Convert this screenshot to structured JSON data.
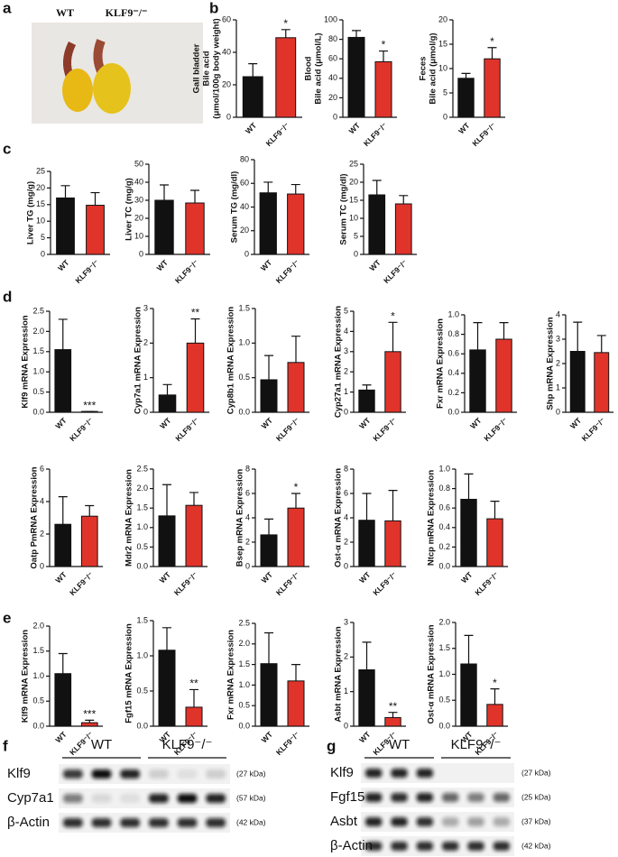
{
  "figure": {
    "panels": [
      "a",
      "b",
      "c",
      "d",
      "e",
      "f",
      "g"
    ],
    "photo": {
      "labels": [
        "WT",
        "KLF9⁻/⁻"
      ]
    },
    "blots": [
      {
        "groups": [
          "WT",
          "KLF9⁻/⁻"
        ],
        "rows": [
          {
            "label": "Klf9",
            "size": "(27 kDa)"
          },
          {
            "label": "Cyp7a1",
            "size": "(57 kDa)"
          },
          {
            "label": "β-Actin",
            "size": "(42 kDa)"
          }
        ]
      },
      {
        "groups": [
          "WT",
          "KLF9⁻/⁻"
        ],
        "rows": [
          {
            "label": "Klf9",
            "size": "(27 kDa)"
          },
          {
            "label": "Fgf15",
            "size": "(25 kDa)"
          },
          {
            "label": "Asbt",
            "size": "(37 kDa)"
          },
          {
            "label": "β-Actin",
            "size": "(42 kDa)"
          }
        ]
      }
    ]
  },
  "chart_data": [
    {
      "type": "bar",
      "ylabel": [
        "Gall bladder",
        "Bile acid",
        "(μmol/100g body weight)"
      ],
      "categories": [
        "WT",
        "KLF9⁻/⁻"
      ],
      "values": [
        25,
        49
      ],
      "errors": [
        8,
        5
      ],
      "colors": [
        "#111111",
        "#e0342b"
      ],
      "significance": [
        null,
        "*"
      ],
      "ylim": [
        0,
        60
      ],
      "yticks": [
        0,
        20,
        40,
        60
      ]
    },
    {
      "type": "bar",
      "ylabel": [
        "Blood",
        "Bile acid (μmol/L)"
      ],
      "categories": [
        "WT",
        "KLF9⁻/⁻"
      ],
      "values": [
        82,
        57
      ],
      "errors": [
        7,
        11
      ],
      "colors": [
        "#111111",
        "#e0342b"
      ],
      "significance": [
        null,
        "*"
      ],
      "ylim": [
        0,
        100
      ],
      "yticks": [
        0,
        20,
        40,
        60,
        80,
        100
      ]
    },
    {
      "type": "bar",
      "ylabel": [
        "Feces",
        "Bile acid (μmol/g)"
      ],
      "categories": [
        "WT",
        "KLF9⁻/⁻"
      ],
      "values": [
        8,
        12
      ],
      "errors": [
        1,
        2.3
      ],
      "colors": [
        "#111111",
        "#e0342b"
      ],
      "significance": [
        null,
        "*"
      ],
      "ylim": [
        0,
        20
      ],
      "yticks": [
        0,
        5,
        10,
        15,
        20
      ]
    },
    {
      "type": "bar",
      "ylabel": [
        "Liver TG (mg/g)"
      ],
      "categories": [
        "WT",
        "KLF9⁻/⁻"
      ],
      "values": [
        17,
        14.8
      ],
      "errors": [
        3.7,
        3.8
      ],
      "colors": [
        "#111111",
        "#e0342b"
      ],
      "significance": [
        null,
        null
      ],
      "ylim": [
        0,
        25
      ],
      "yticks": [
        0,
        5,
        10,
        15,
        20,
        25
      ]
    },
    {
      "type": "bar",
      "ylabel": [
        "Liver TC (mg/g)"
      ],
      "categories": [
        "WT",
        "KLF9⁻/⁻"
      ],
      "values": [
        30,
        28.5
      ],
      "errors": [
        8.5,
        7
      ],
      "colors": [
        "#111111",
        "#e0342b"
      ],
      "significance": [
        null,
        null
      ],
      "ylim": [
        0,
        50
      ],
      "yticks": [
        0,
        10,
        20,
        30,
        40,
        50
      ]
    },
    {
      "type": "bar",
      "ylabel": [
        "Serum TG (mg/dl)"
      ],
      "categories": [
        "WT",
        "KLF9⁻/⁻"
      ],
      "values": [
        52,
        51
      ],
      "errors": [
        9,
        8
      ],
      "colors": [
        "#111111",
        "#e0342b"
      ],
      "significance": [
        null,
        null
      ],
      "ylim": [
        0,
        80
      ],
      "yticks": [
        0,
        20,
        40,
        60,
        80
      ]
    },
    {
      "type": "bar",
      "ylabel": [
        "Serum TC (mg/dl)"
      ],
      "categories": [
        "WT",
        "KLF9⁻/⁻"
      ],
      "values": [
        16.5,
        14
      ],
      "errors": [
        4,
        2.3
      ],
      "colors": [
        "#111111",
        "#e0342b"
      ],
      "significance": [
        null,
        null
      ],
      "ylim": [
        0,
        25
      ],
      "yticks": [
        0,
        5,
        10,
        15,
        20,
        25
      ]
    },
    {
      "type": "bar",
      "ylabel": [
        "Klf9 mRNA Expression"
      ],
      "categories": [
        "WT",
        "KLF9⁻/⁻"
      ],
      "values": [
        1.55,
        0.02
      ],
      "errors": [
        0.75,
        0
      ],
      "colors": [
        "#111111",
        "#e0342b"
      ],
      "significance": [
        null,
        "***"
      ],
      "ylim": [
        0,
        2.5
      ],
      "yticks": [
        {
          "value": 0,
          "label": "0.0"
        },
        0.5,
        {
          "value": 1,
          "label": "1.0"
        },
        1.5,
        {
          "value": 2,
          "label": "2.0"
        },
        2.5
      ]
    },
    {
      "type": "bar",
      "ylabel": [
        "Cyp7a1 mRNA Expression"
      ],
      "categories": [
        "WT",
        "KLF9⁻/⁻"
      ],
      "values": [
        0.5,
        2.0
      ],
      "errors": [
        0.3,
        0.7
      ],
      "colors": [
        "#111111",
        "#e0342b"
      ],
      "significance": [
        null,
        "**"
      ],
      "ylim": [
        0,
        3
      ],
      "yticks": [
        0,
        1,
        2,
        3
      ]
    },
    {
      "type": "bar",
      "ylabel": [
        "Cyp8b1 mRNA Expression"
      ],
      "categories": [
        "WT",
        "KLF9⁻/⁻"
      ],
      "values": [
        0.47,
        0.72
      ],
      "errors": [
        0.35,
        0.38
      ],
      "colors": [
        "#111111",
        "#e0342b"
      ],
      "significance": [
        null,
        null
      ],
      "ylim": [
        0,
        1.5
      ],
      "yticks": [
        {
          "value": 0,
          "label": "0.0"
        },
        0.5,
        {
          "value": 1,
          "label": "1.0"
        },
        1.5
      ]
    },
    {
      "type": "bar",
      "ylabel": [
        "Cyp27a1 mRNA Expression"
      ],
      "categories": [
        "WT",
        "KLF9⁻/⁻"
      ],
      "values": [
        1.1,
        3.0
      ],
      "errors": [
        0.25,
        1.45
      ],
      "colors": [
        "#111111",
        "#e0342b"
      ],
      "significance": [
        null,
        "*"
      ],
      "ylim": [
        0,
        5
      ],
      "yticks": [
        0,
        1,
        2,
        3,
        4,
        5
      ]
    },
    {
      "type": "bar",
      "ylabel": [
        "Fxr mRNA Expression"
      ],
      "categories": [
        "WT",
        "KLF9⁻/⁻"
      ],
      "values": [
        0.64,
        0.75
      ],
      "errors": [
        0.28,
        0.17
      ],
      "colors": [
        "#111111",
        "#e0342b"
      ],
      "significance": [
        null,
        null
      ],
      "ylim": [
        0,
        1.0
      ],
      "yticks": [
        {
          "value": 0,
          "label": "0.0"
        },
        0.2,
        0.4,
        0.6,
        0.8,
        {
          "value": 1,
          "label": "1.0"
        }
      ]
    },
    {
      "type": "bar",
      "ylabel": [
        "Shp mRNA Expression"
      ],
      "categories": [
        "WT",
        "KLF9⁻/⁻"
      ],
      "values": [
        2.5,
        2.45
      ],
      "errors": [
        1.2,
        0.7
      ],
      "colors": [
        "#111111",
        "#e0342b"
      ],
      "significance": [
        null,
        null
      ],
      "ylim": [
        0,
        4
      ],
      "yticks": [
        0,
        1,
        2,
        3,
        4
      ]
    },
    {
      "type": "bar",
      "ylabel": [
        "Oatp PmRNA Expression"
      ],
      "categories": [
        "WT",
        "KLF9⁻/⁻"
      ],
      "values": [
        2.6,
        3.1
      ],
      "errors": [
        1.7,
        0.65
      ],
      "colors": [
        "#111111",
        "#e0342b"
      ],
      "significance": [
        null,
        null
      ],
      "ylim": [
        0,
        6
      ],
      "yticks": [
        0,
        2,
        4,
        6
      ]
    },
    {
      "type": "bar",
      "ylabel": [
        "Mdr2 mRNA Expression"
      ],
      "categories": [
        "WT",
        "KLF9⁻/⁻"
      ],
      "values": [
        1.3,
        1.57
      ],
      "errors": [
        0.8,
        0.33
      ],
      "colors": [
        "#111111",
        "#e0342b"
      ],
      "significance": [
        null,
        null
      ],
      "ylim": [
        0,
        2.5
      ],
      "yticks": [
        {
          "value": 0,
          "label": "0.0"
        },
        0.5,
        {
          "value": 1,
          "label": "1.0"
        },
        1.5,
        {
          "value": 2,
          "label": "2.0"
        },
        2.5
      ]
    },
    {
      "type": "bar",
      "ylabel": [
        "Bsep mRNA Expression"
      ],
      "categories": [
        "WT",
        "KLF9⁻/⁻"
      ],
      "values": [
        2.6,
        4.8
      ],
      "errors": [
        1.3,
        1.2
      ],
      "colors": [
        "#111111",
        "#e0342b"
      ],
      "significance": [
        null,
        "*"
      ],
      "ylim": [
        0,
        8
      ],
      "yticks": [
        0,
        2,
        4,
        6,
        8
      ]
    },
    {
      "type": "bar",
      "ylabel": [
        "Ost-α mRNA Expression"
      ],
      "categories": [
        "WT",
        "KLF9⁻/⁻"
      ],
      "values": [
        3.8,
        3.75
      ],
      "errors": [
        2.2,
        2.5
      ],
      "colors": [
        "#111111",
        "#e0342b"
      ],
      "significance": [
        null,
        null
      ],
      "ylim": [
        0,
        8
      ],
      "yticks": [
        0,
        2,
        4,
        6,
        8
      ]
    },
    {
      "type": "bar",
      "ylabel": [
        "Ntcp mRNA Expression"
      ],
      "categories": [
        "WT",
        "KLF9⁻/⁻"
      ],
      "values": [
        0.69,
        0.49
      ],
      "errors": [
        0.26,
        0.18
      ],
      "colors": [
        "#111111",
        "#e0342b"
      ],
      "significance": [
        null,
        null
      ],
      "ylim": [
        0,
        1.0
      ],
      "yticks": [
        {
          "value": 0,
          "label": "0.0"
        },
        0.2,
        0.4,
        0.6,
        0.8,
        {
          "value": 1,
          "label": "1.0"
        }
      ]
    },
    {
      "type": "bar",
      "ylabel": [
        "Klf9 mRNA Expression"
      ],
      "categories": [
        "WT",
        "KLF9⁻/⁻"
      ],
      "values": [
        1.05,
        0.07
      ],
      "errors": [
        0.4,
        0.05
      ],
      "colors": [
        "#111111",
        "#e0342b"
      ],
      "significance": [
        null,
        "***"
      ],
      "ylim": [
        0,
        2.0
      ],
      "yticks": [
        {
          "value": 0,
          "label": "0.0"
        },
        0.5,
        {
          "value": 1,
          "label": "1.0"
        },
        1.5,
        {
          "value": 2,
          "label": "2.0"
        }
      ]
    },
    {
      "type": "bar",
      "ylabel": [
        "Fgf15 mRNA Expression"
      ],
      "categories": [
        "WT",
        "KLF9⁻/⁻"
      ],
      "values": [
        1.08,
        0.27
      ],
      "errors": [
        0.32,
        0.25
      ],
      "colors": [
        "#111111",
        "#e0342b"
      ],
      "significance": [
        null,
        "**"
      ],
      "ylim": [
        0,
        1.5
      ],
      "yticks": [
        {
          "value": 0,
          "label": "0.0"
        },
        0.5,
        {
          "value": 1,
          "label": "1.0"
        },
        1.5
      ]
    },
    {
      "type": "bar",
      "ylabel": [
        "Fxr mRNA Expression"
      ],
      "categories": [
        "WT",
        "KLF9⁻/⁻"
      ],
      "values": [
        1.52,
        1.1
      ],
      "errors": [
        0.75,
        0.4
      ],
      "colors": [
        "#111111",
        "#e0342b"
      ],
      "significance": [
        null,
        null
      ],
      "ylim": [
        0,
        2.5
      ],
      "yticks": [
        {
          "value": 0,
          "label": "0.0"
        },
        0.5,
        {
          "value": 1,
          "label": "1.0"
        },
        1.5,
        {
          "value": 2,
          "label": "2.0"
        },
        2.5
      ]
    },
    {
      "type": "bar",
      "ylabel": [
        "Asbt mRNA Expression"
      ],
      "categories": [
        "WT",
        "KLF9⁻/⁻"
      ],
      "values": [
        1.63,
        0.25
      ],
      "errors": [
        0.8,
        0.15
      ],
      "colors": [
        "#111111",
        "#e0342b"
      ],
      "significance": [
        null,
        "**"
      ],
      "ylim": [
        0,
        3
      ],
      "yticks": [
        0,
        1,
        2,
        3
      ]
    },
    {
      "type": "bar",
      "ylabel": [
        "Ost-α mRNA Expression"
      ],
      "categories": [
        "WT",
        "KLF9⁻/⁻"
      ],
      "values": [
        1.2,
        0.42
      ],
      "errors": [
        0.55,
        0.3
      ],
      "colors": [
        "#111111",
        "#e0342b"
      ],
      "significance": [
        null,
        "*"
      ],
      "ylim": [
        0,
        2.0
      ],
      "yticks": [
        {
          "value": 0,
          "label": "0.0"
        },
        0.5,
        {
          "value": 1,
          "label": "1.0"
        },
        1.5,
        {
          "value": 2,
          "label": "2.0"
        }
      ]
    }
  ]
}
